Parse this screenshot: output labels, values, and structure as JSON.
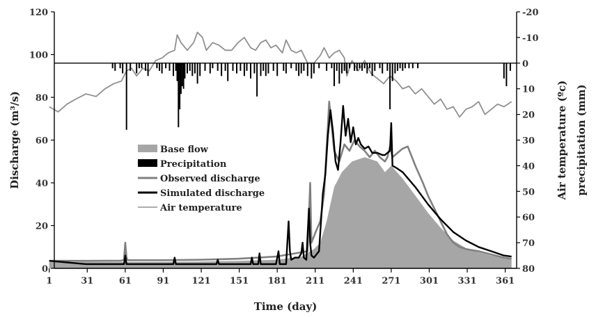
{
  "chart_data": {
    "type": "area",
    "title": "",
    "xlabel": "Time (day)",
    "ylabel": "Discharge (m³/s)",
    "y2label_a": "Air temperature (ºc)",
    "y2label_b": "precipitation (mm)",
    "xlim": [
      1,
      366
    ],
    "xticks": [
      1,
      31,
      61,
      91,
      121,
      151,
      181,
      211,
      241,
      271,
      301,
      331,
      361
    ],
    "ylim": [
      0,
      120
    ],
    "yticks": [
      0,
      20,
      40,
      60,
      80,
      100,
      120
    ],
    "y2lim": [
      80,
      -20
    ],
    "y2ticks": [
      -20,
      -10,
      0,
      10,
      20,
      30,
      40,
      50,
      60,
      70,
      80
    ],
    "legend_position": "center-left",
    "grid": false,
    "series": [
      {
        "name": "Base flow",
        "axis": "left",
        "kind": "area",
        "color": "#a6a6a6",
        "points": [
          [
            1,
            3
          ],
          [
            30,
            3
          ],
          [
            60,
            3
          ],
          [
            90,
            3
          ],
          [
            120,
            3.2
          ],
          [
            150,
            3.5
          ],
          [
            180,
            4
          ],
          [
            200,
            5.5
          ],
          [
            210,
            9
          ],
          [
            215,
            12
          ],
          [
            220,
            22
          ],
          [
            226,
            38
          ],
          [
            232,
            45
          ],
          [
            240,
            50
          ],
          [
            250,
            52
          ],
          [
            260,
            50
          ],
          [
            266,
            45
          ],
          [
            271,
            48
          ],
          [
            280,
            42
          ],
          [
            290,
            34
          ],
          [
            300,
            26
          ],
          [
            310,
            19
          ],
          [
            320,
            13
          ],
          [
            330,
            9.5
          ],
          [
            340,
            7.5
          ],
          [
            350,
            6
          ],
          [
            360,
            5
          ],
          [
            366,
            4.5
          ]
        ]
      },
      {
        "name": "Precipitation",
        "axis": "right",
        "kind": "bar",
        "color": "#000000",
        "points": [
          [
            51,
            2
          ],
          [
            53,
            3
          ],
          [
            57,
            2
          ],
          [
            59,
            4
          ],
          [
            62,
            26
          ],
          [
            65,
            3
          ],
          [
            70,
            4
          ],
          [
            72,
            2
          ],
          [
            74,
            2
          ],
          [
            77,
            3
          ],
          [
            79,
            5
          ],
          [
            86,
            2
          ],
          [
            88,
            3
          ],
          [
            90,
            4
          ],
          [
            93,
            2
          ],
          [
            96,
            3
          ],
          [
            99,
            5
          ],
          [
            101,
            3
          ],
          [
            102,
            7
          ],
          [
            103,
            25
          ],
          [
            104,
            18
          ],
          [
            105,
            12
          ],
          [
            106,
            9
          ],
          [
            107,
            10
          ],
          [
            108,
            6
          ],
          [
            110,
            4
          ],
          [
            112,
            3
          ],
          [
            114,
            5
          ],
          [
            116,
            4
          ],
          [
            118,
            8
          ],
          [
            120,
            5
          ],
          [
            124,
            3
          ],
          [
            128,
            4
          ],
          [
            130,
            2
          ],
          [
            134,
            3
          ],
          [
            137,
            5
          ],
          [
            140,
            3
          ],
          [
            142,
            7
          ],
          [
            146,
            3
          ],
          [
            149,
            4
          ],
          [
            152,
            3
          ],
          [
            155,
            5
          ],
          [
            157,
            3
          ],
          [
            160,
            6
          ],
          [
            163,
            4
          ],
          [
            165,
            13
          ],
          [
            168,
            5
          ],
          [
            170,
            3
          ],
          [
            172,
            5
          ],
          [
            174,
            4
          ],
          [
            178,
            3
          ],
          [
            181,
            5
          ],
          [
            186,
            3
          ],
          [
            188,
            4
          ],
          [
            192,
            2
          ],
          [
            196,
            3
          ],
          [
            198,
            5
          ],
          [
            200,
            4
          ],
          [
            202,
            3
          ],
          [
            205,
            5
          ],
          [
            208,
            6
          ],
          [
            210,
            4
          ],
          [
            214,
            2
          ],
          [
            220,
            3
          ],
          [
            224,
            2
          ],
          [
            226,
            9
          ],
          [
            228,
            3
          ],
          [
            230,
            8
          ],
          [
            232,
            4
          ],
          [
            234,
            3
          ],
          [
            236,
            4
          ],
          [
            238,
            2
          ],
          [
            242,
            3
          ],
          [
            244,
            3
          ],
          [
            246,
            2
          ],
          [
            248,
            3
          ],
          [
            250,
            2
          ],
          [
            252,
            4
          ],
          [
            254,
            2
          ],
          [
            256,
            5
          ],
          [
            258,
            3
          ],
          [
            262,
            2
          ],
          [
            264,
            4
          ],
          [
            268,
            3
          ],
          [
            270,
            18
          ],
          [
            272,
            7
          ],
          [
            274,
            4
          ],
          [
            276,
            3
          ],
          [
            278,
            2
          ],
          [
            280,
            3
          ],
          [
            282,
            2
          ],
          [
            285,
            2
          ],
          [
            288,
            2
          ],
          [
            292,
            2
          ],
          [
            360,
            6
          ],
          [
            362,
            9
          ],
          [
            365,
            3
          ]
        ]
      },
      {
        "name": "Observed discharge",
        "axis": "left",
        "kind": "line",
        "color": "#808080",
        "points": [
          [
            1,
            3.5
          ],
          [
            30,
            3.5
          ],
          [
            58,
            3.6
          ],
          [
            60,
            4
          ],
          [
            61,
            12
          ],
          [
            62,
            5
          ],
          [
            63,
            3.8
          ],
          [
            90,
            3.8
          ],
          [
            120,
            4
          ],
          [
            150,
            4.5
          ],
          [
            180,
            5.5
          ],
          [
            195,
            7
          ],
          [
            205,
            8
          ],
          [
            207,
            40
          ],
          [
            208,
            12
          ],
          [
            212,
            18
          ],
          [
            215,
            22
          ],
          [
            218,
            35
          ],
          [
            222,
            78
          ],
          [
            226,
            55
          ],
          [
            230,
            50
          ],
          [
            234,
            58
          ],
          [
            238,
            55
          ],
          [
            242,
            60
          ],
          [
            246,
            57
          ],
          [
            250,
            55
          ],
          [
            254,
            52
          ],
          [
            258,
            55
          ],
          [
            262,
            52
          ],
          [
            266,
            50
          ],
          [
            268,
            52
          ],
          [
            270,
            57
          ],
          [
            272,
            52
          ],
          [
            276,
            54
          ],
          [
            280,
            56
          ],
          [
            284,
            57
          ],
          [
            290,
            48
          ],
          [
            296,
            40
          ],
          [
            300,
            34
          ],
          [
            305,
            28
          ],
          [
            310,
            22
          ],
          [
            315,
            16
          ],
          [
            320,
            12
          ],
          [
            325,
            10
          ],
          [
            330,
            9
          ],
          [
            340,
            8
          ],
          [
            350,
            6.5
          ],
          [
            360,
            5
          ],
          [
            366,
            4.5
          ]
        ]
      },
      {
        "name": "Simulated discharge",
        "axis": "left",
        "kind": "line",
        "color": "#000000",
        "points": [
          [
            1,
            3.5
          ],
          [
            30,
            2
          ],
          [
            60,
            2
          ],
          [
            61,
            6
          ],
          [
            62,
            2
          ],
          [
            99,
            2
          ],
          [
            100,
            5
          ],
          [
            101,
            2
          ],
          [
            133,
            2
          ],
          [
            134,
            4
          ],
          [
            135,
            2
          ],
          [
            160,
            2
          ],
          [
            161,
            5
          ],
          [
            162,
            2
          ],
          [
            166,
            2
          ],
          [
            167,
            7
          ],
          [
            168,
            2
          ],
          [
            180,
            2
          ],
          [
            182,
            8
          ],
          [
            183,
            2
          ],
          [
            188,
            2
          ],
          [
            190,
            22
          ],
          [
            191,
            8
          ],
          [
            192,
            4
          ],
          [
            195,
            5
          ],
          [
            198,
            5
          ],
          [
            200,
            7
          ],
          [
            201,
            12
          ],
          [
            202,
            5
          ],
          [
            204,
            4
          ],
          [
            206,
            28
          ],
          [
            207,
            12
          ],
          [
            208,
            6
          ],
          [
            210,
            5
          ],
          [
            214,
            8
          ],
          [
            217,
            35
          ],
          [
            219,
            44
          ],
          [
            221,
            62
          ],
          [
            223,
            74
          ],
          [
            225,
            64
          ],
          [
            227,
            50
          ],
          [
            229,
            46
          ],
          [
            231,
            59
          ],
          [
            233,
            76
          ],
          [
            235,
            62
          ],
          [
            237,
            70
          ],
          [
            239,
            59
          ],
          [
            241,
            66
          ],
          [
            243,
            58
          ],
          [
            245,
            61
          ],
          [
            247,
            58
          ],
          [
            250,
            56
          ],
          [
            253,
            57
          ],
          [
            256,
            54
          ],
          [
            260,
            54
          ],
          [
            264,
            53
          ],
          [
            266,
            53
          ],
          [
            268,
            54
          ],
          [
            270,
            55
          ],
          [
            271,
            68
          ],
          [
            272,
            48
          ],
          [
            275,
            47
          ],
          [
            280,
            45
          ],
          [
            290,
            38
          ],
          [
            300,
            30
          ],
          [
            310,
            23
          ],
          [
            320,
            17
          ],
          [
            330,
            13
          ],
          [
            340,
            10
          ],
          [
            350,
            8
          ],
          [
            360,
            6
          ],
          [
            366,
            5.5
          ]
        ]
      },
      {
        "name": "Air temperature",
        "axis": "right",
        "kind": "line",
        "color": "#909090",
        "points": [
          [
            1,
            17
          ],
          [
            8,
            19
          ],
          [
            15,
            16
          ],
          [
            22,
            14
          ],
          [
            30,
            12
          ],
          [
            38,
            13
          ],
          [
            45,
            10
          ],
          [
            52,
            8
          ],
          [
            58,
            7
          ],
          [
            62,
            3
          ],
          [
            66,
            2
          ],
          [
            70,
            5
          ],
          [
            75,
            2
          ],
          [
            80,
            3
          ],
          [
            85,
            -1
          ],
          [
            90,
            -2
          ],
          [
            95,
            -4
          ],
          [
            100,
            -5
          ],
          [
            102,
            -11
          ],
          [
            105,
            -8
          ],
          [
            110,
            -5
          ],
          [
            115,
            -8
          ],
          [
            118,
            -12
          ],
          [
            122,
            -10
          ],
          [
            125,
            -5
          ],
          [
            130,
            -8
          ],
          [
            135,
            -7
          ],
          [
            140,
            -5
          ],
          [
            145,
            -5
          ],
          [
            150,
            -8
          ],
          [
            155,
            -10
          ],
          [
            160,
            -6
          ],
          [
            164,
            -5
          ],
          [
            168,
            -8
          ],
          [
            172,
            -9
          ],
          [
            176,
            -6
          ],
          [
            180,
            -7
          ],
          [
            185,
            -4
          ],
          [
            188,
            -9
          ],
          [
            192,
            -5
          ],
          [
            196,
            -4
          ],
          [
            200,
            -5
          ],
          [
            205,
            0
          ],
          [
            210,
            0
          ],
          [
            215,
            -3
          ],
          [
            218,
            -6
          ],
          [
            222,
            -2
          ],
          [
            226,
            -4
          ],
          [
            230,
            -5
          ],
          [
            234,
            -2
          ],
          [
            236,
            5
          ],
          [
            240,
            -1
          ],
          [
            245,
            3
          ],
          [
            250,
            -1
          ],
          [
            255,
            4
          ],
          [
            260,
            6
          ],
          [
            265,
            8
          ],
          [
            270,
            5
          ],
          [
            275,
            7
          ],
          [
            280,
            10
          ],
          [
            285,
            9
          ],
          [
            290,
            12
          ],
          [
            295,
            10
          ],
          [
            300,
            13
          ],
          [
            305,
            16
          ],
          [
            310,
            14
          ],
          [
            315,
            18
          ],
          [
            320,
            17
          ],
          [
            325,
            21
          ],
          [
            330,
            18
          ],
          [
            335,
            17
          ],
          [
            340,
            15
          ],
          [
            345,
            20
          ],
          [
            350,
            18
          ],
          [
            355,
            16
          ],
          [
            360,
            17
          ],
          [
            366,
            15
          ]
        ]
      }
    ]
  }
}
